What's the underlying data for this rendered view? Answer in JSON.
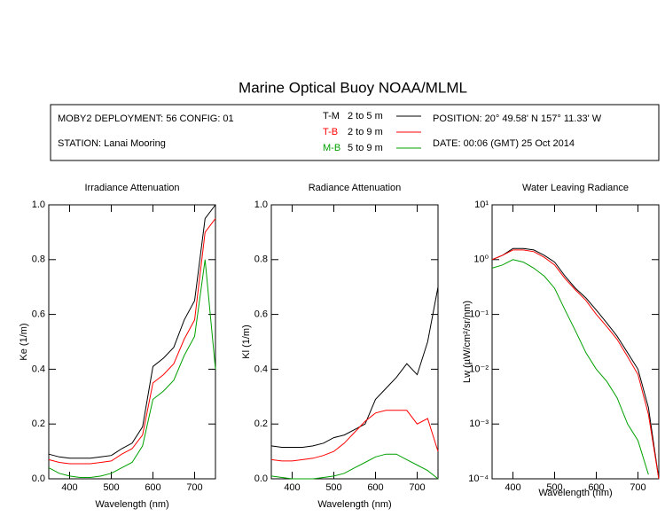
{
  "title": "Marine Optical Buoy NOAA/MLML",
  "header": {
    "deployment": "MOBY2 DEPLOYMENT: 56 CONFIG: 01",
    "station": "STATION: Lanai Mooring",
    "position": "POSITION: 20° 49.58' N   157° 11.33' W",
    "date": "DATE: 00:06 (GMT) 25 Oct 2014",
    "depths": [
      "2 to 5  m",
      "2 to 9  m",
      "5 to 9  m"
    ]
  },
  "chart_data": [
    {
      "type": "line",
      "title": "Irradiance Attenuation",
      "x_label": "Wavelength (nm)",
      "y_label": "Ke  (1/m)",
      "x": [
        350,
        375,
        400,
        425,
        450,
        475,
        500,
        525,
        550,
        575,
        600,
        625,
        650,
        675,
        700,
        725,
        750
      ],
      "xlim": [
        350,
        750
      ],
      "xticks": [
        400,
        500,
        600,
        700
      ],
      "ylim": [
        0,
        1
      ],
      "yticks": [
        {
          "value": 0,
          "label": "0.0"
        },
        {
          "value": 0.2,
          "label": "0.2"
        },
        {
          "value": 0.4,
          "label": "0.4"
        },
        {
          "value": 0.6,
          "label": "0.6"
        },
        {
          "value": 0.8,
          "label": "0.8"
        },
        {
          "value": 1,
          "label": "1.0"
        }
      ],
      "series": [
        {
          "name": "T-M",
          "color": "#000000",
          "values": [
            0.09,
            0.08,
            0.075,
            0.075,
            0.075,
            0.08,
            0.085,
            0.11,
            0.13,
            0.19,
            0.41,
            0.44,
            0.48,
            0.58,
            0.65,
            0.95,
            1.0
          ]
        },
        {
          "name": "T-B",
          "color": "#ff0000",
          "values": [
            0.07,
            0.06,
            0.055,
            0.055,
            0.055,
            0.06,
            0.065,
            0.09,
            0.11,
            0.16,
            0.35,
            0.38,
            0.42,
            0.51,
            0.58,
            0.9,
            0.95
          ]
        },
        {
          "name": "M-B",
          "color": "#00a000",
          "values": [
            0.04,
            0.02,
            0.01,
            0.005,
            0.005,
            0.01,
            0.02,
            0.04,
            0.06,
            0.12,
            0.29,
            0.32,
            0.36,
            0.45,
            0.52,
            0.8,
            0.4
          ]
        }
      ]
    },
    {
      "type": "line",
      "title": "Radiance Attenuation",
      "x_label": "Wavelength (nm)",
      "y_label": "Kl  (1/m)",
      "x": [
        350,
        375,
        400,
        425,
        450,
        475,
        500,
        525,
        550,
        575,
        600,
        625,
        650,
        675,
        700,
        725,
        750
      ],
      "xlim": [
        350,
        750
      ],
      "xticks": [
        400,
        500,
        600,
        700
      ],
      "ylim": [
        0,
        1
      ],
      "yticks": [
        {
          "value": 0,
          "label": "0.0"
        },
        {
          "value": 0.2,
          "label": "0.2"
        },
        {
          "value": 0.4,
          "label": "0.4"
        },
        {
          "value": 0.6,
          "label": "0.6"
        },
        {
          "value": 0.8,
          "label": "0.8"
        },
        {
          "value": 1,
          "label": "1.0"
        }
      ],
      "series": [
        {
          "color": "#000000",
          "values": [
            0.12,
            0.115,
            0.115,
            0.115,
            0.12,
            0.13,
            0.15,
            0.16,
            0.18,
            0.2,
            0.29,
            0.33,
            0.37,
            0.42,
            0.38,
            0.5,
            0.7
          ]
        },
        {
          "color": "#ff0000",
          "values": [
            0.07,
            0.065,
            0.065,
            0.07,
            0.075,
            0.085,
            0.1,
            0.13,
            0.17,
            0.21,
            0.24,
            0.25,
            0.25,
            0.25,
            0.2,
            0.22,
            0.1
          ]
        },
        {
          "color": "#00a000",
          "values": [
            0.01,
            0.005,
            0.0,
            0.0,
            0.0,
            0.005,
            0.01,
            0.02,
            0.04,
            0.06,
            0.08,
            0.09,
            0.09,
            0.07,
            0.05,
            0.03,
            0.0
          ]
        }
      ]
    },
    {
      "type": "line",
      "title": "Water Leaving Radiance",
      "x_label": "Wavelength (nm)",
      "y_label": "Lw  (µW/cm²/sr/nm)",
      "x": [
        350,
        375,
        400,
        425,
        450,
        475,
        500,
        525,
        550,
        575,
        600,
        625,
        650,
        675,
        700,
        725,
        750
      ],
      "xlim": [
        350,
        750
      ],
      "xticks": [
        400,
        500,
        600,
        700
      ],
      "log_scale": true,
      "ylim": [
        0.0001,
        10
      ],
      "yticks": [
        {
          "value": 0.0001,
          "label": "10⁻⁴"
        },
        {
          "value": 0.001,
          "label": "10⁻³"
        },
        {
          "value": 0.01,
          "label": "10⁻²"
        },
        {
          "value": 0.1,
          "label": "10⁻¹"
        },
        {
          "value": 1,
          "label": "10⁰"
        },
        {
          "value": 10,
          "label": "10¹"
        }
      ],
      "series": [
        {
          "color": "#000000",
          "values": [
            1.0,
            1.2,
            1.6,
            1.6,
            1.5,
            1.2,
            0.9,
            0.5,
            0.3,
            0.2,
            0.12,
            0.07,
            0.04,
            0.02,
            0.01,
            0.002,
            0.0001
          ]
        },
        {
          "color": "#ff0000",
          "values": [
            1.0,
            1.2,
            1.5,
            1.5,
            1.4,
            1.1,
            0.8,
            0.45,
            0.28,
            0.18,
            0.1,
            0.06,
            0.035,
            0.017,
            0.008,
            0.0015,
            0.0001
          ]
        },
        {
          "color": "#00a000",
          "values": [
            0.7,
            0.8,
            1.0,
            0.9,
            0.7,
            0.5,
            0.3,
            0.12,
            0.05,
            0.02,
            0.01,
            0.006,
            0.003,
            0.001,
            0.0005,
            0.00012,
            null
          ]
        }
      ]
    }
  ]
}
